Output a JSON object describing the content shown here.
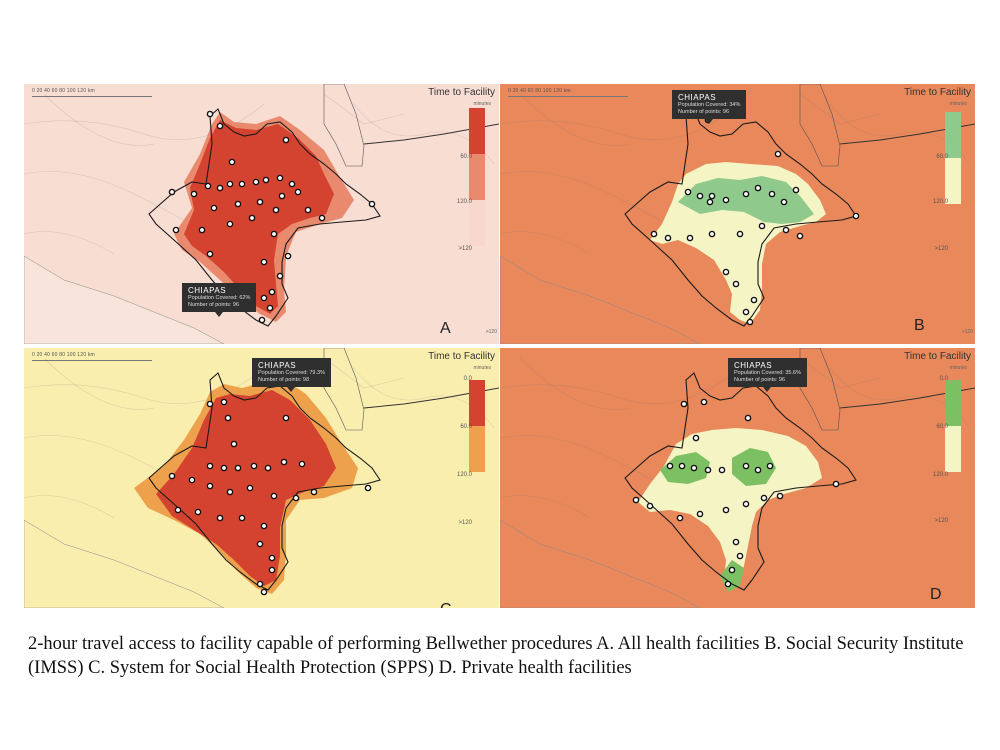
{
  "scale_ticks": "0    20    40    60    80   100   120   km",
  "legend": {
    "title": "Time to Facility",
    "unit": "minutes",
    "ticks": [
      "0.0",
      "60.0",
      "120.0",
      ">120"
    ]
  },
  "colors": {
    "A": {
      "low": "#d4432f",
      "mid": "#e98a6f",
      "high": "#f8d7cc",
      "bg": "#f8ddd3"
    },
    "B": {
      "low": "#8fc98c",
      "mid": "#f4f4c4",
      "high": "#e9885b",
      "bg": "#e9885b"
    },
    "C": {
      "low": "#d4432f",
      "mid": "#eda14c",
      "high": "#faeeae",
      "bg": "#faeeae"
    },
    "D": {
      "low": "#7cc063",
      "mid": "#f4f4c4",
      "high": "#e9885b",
      "bg": "#e9885b"
    }
  },
  "panels": [
    {
      "id": "A",
      "letter": "A",
      "tooltip": {
        "title": "CHIAPAS",
        "covered": "Population Covered: 62%",
        "points": "Number of points: 96"
      },
      "stray": ">120"
    },
    {
      "id": "B",
      "letter": "B",
      "tooltip": {
        "title": "CHIAPAS",
        "covered": "Population Covered: 34%",
        "points": "Number of points: 96"
      },
      "stray": ">120"
    },
    {
      "id": "C",
      "letter": "C",
      "tooltip": {
        "title": "CHIAPAS",
        "covered": "Population Covered: 79.3%",
        "points": "Number of points: 98"
      },
      "stray": ""
    },
    {
      "id": "D",
      "letter": "D",
      "tooltip": {
        "title": "CHIAPAS",
        "covered": "Population Covered: 35.6%",
        "points": "Number of points: 96"
      },
      "stray": ""
    }
  ],
  "caption": "2-hour travel access to facility capable of performing Bellwether procedures A. All health facilities B. Social Security Institute (IMSS) C. System for Social Health Protection (SPPS) D. Private health facilities"
}
